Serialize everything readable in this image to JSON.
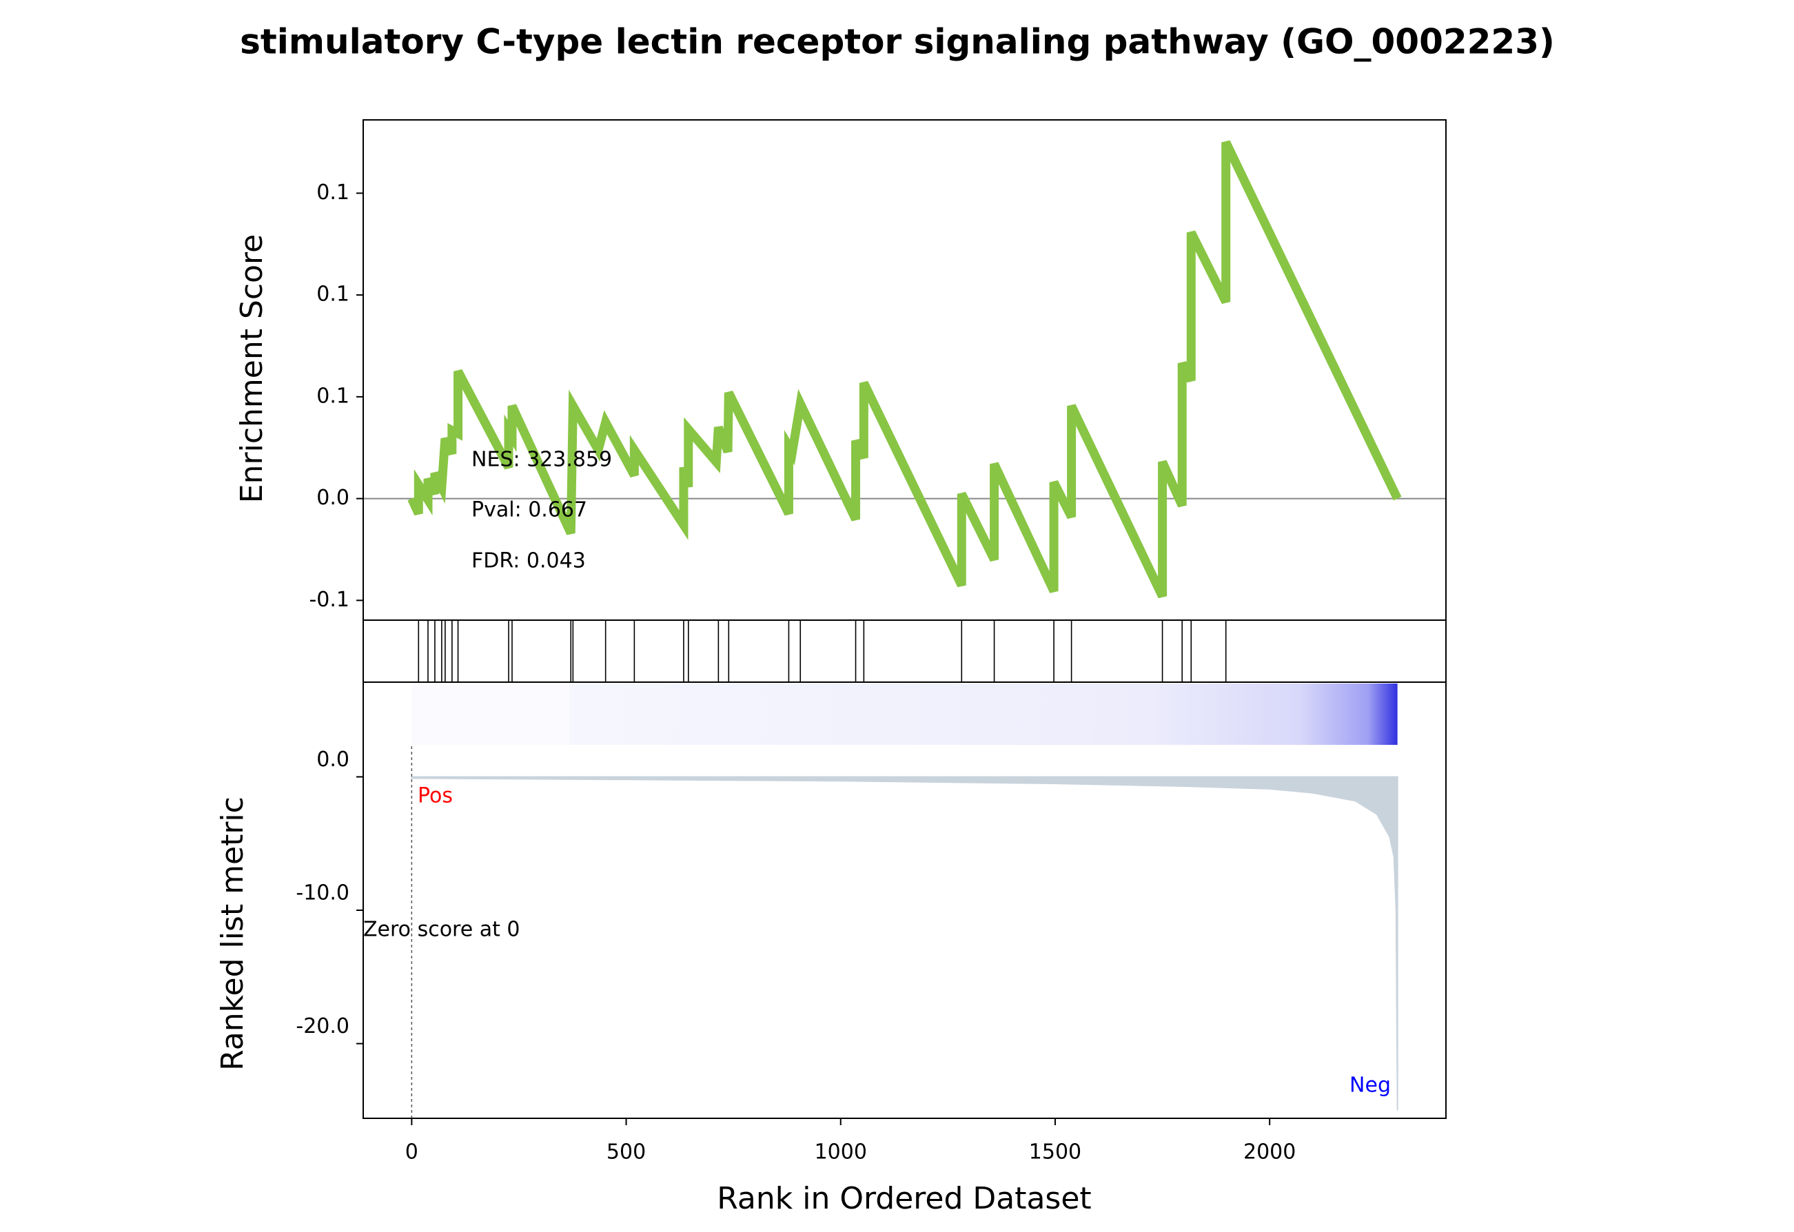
{
  "chart_data": [
    {
      "type": "line",
      "title": "stimulatory C-type lectin receptor signaling pathway (GO_0002223)",
      "ylabel": "Enrichment Score",
      "color": "#88c544",
      "x": [
        0,
        16,
        16,
        38,
        38,
        54,
        54,
        70,
        78,
        94,
        94,
        108,
        108,
        226,
        226,
        234,
        234,
        371,
        376,
        435,
        452,
        519,
        519,
        634,
        634,
        645,
        645,
        710,
        715,
        737,
        739,
        879,
        879,
        887,
        906,
        1035,
        1035,
        1054,
        1054,
        1282,
        1282,
        1358,
        1358,
        1497,
        1497,
        1538,
        1538,
        1750,
        1750,
        1796,
        1796,
        1817,
        1817,
        1898,
        1898,
        2298
      ],
      "values": [
        0,
        -0.0074,
        0.0068,
        -0.0006,
        0.0097,
        0.0023,
        0.0125,
        0.0057,
        0.0295,
        0.022,
        0.0335,
        0.032,
        0.0625,
        0.0153,
        0.0335,
        0.0307,
        0.0455,
        -0.017,
        0.0455,
        0.0239,
        0.0375,
        0.0114,
        0.0239,
        -0.013,
        0.0153,
        0.0057,
        0.034,
        0.018,
        0.035,
        0.023,
        0.052,
        -0.0074,
        0.0256,
        0.0227,
        0.0466,
        -0.0102,
        0.0284,
        0.02,
        0.0568,
        -0.0426,
        0.0023,
        -0.03,
        0.017,
        -0.0455,
        0.008,
        -0.009,
        0.0455,
        -0.048,
        0.018,
        -0.0034,
        0.0665,
        0.058,
        0.1307,
        0.0966,
        0.175,
        0
      ],
      "hits": [
        16,
        38,
        54,
        70,
        78,
        94,
        108,
        226,
        234,
        371,
        376,
        452,
        519,
        634,
        645,
        715,
        739,
        879,
        906,
        1035,
        1054,
        1282,
        1358,
        1497,
        1538,
        1750,
        1796,
        1817,
        1898
      ],
      "xlim": [
        -113,
        2411
      ],
      "ylim": [
        -0.0597,
        0.186
      ],
      "yticks": [
        {
          "value": 0.15,
          "label": "0.1"
        },
        {
          "value": 0.1,
          "label": "0.1"
        },
        {
          "value": 0.05,
          "label": "0.1"
        },
        {
          "value": 0,
          "label": "0.0"
        },
        {
          "value": -0.05,
          "label": "-0.1"
        }
      ],
      "annotations": [
        "NES: 323.859",
        "Pval: 0.667",
        "FDR: 0.043"
      ]
    },
    {
      "type": "area",
      "ylabel": "Ranked list metric",
      "xlabel": "Rank in Ordered Dataset",
      "color": "#c9d3dc",
      "x": [
        0,
        500,
        1000,
        1500,
        1800,
        2000,
        2100,
        2200,
        2250,
        2280,
        2290,
        2295,
        2298
      ],
      "values": [
        -0.1,
        -0.2,
        -0.3,
        -0.5,
        -0.7,
        -0.9,
        -1.2,
        -1.8,
        -2.8,
        -4.5,
        -6,
        -10,
        -25
      ],
      "xlim": [
        -113,
        2411
      ],
      "ylim": [
        -25.6,
        7.1
      ],
      "xticks": [
        0,
        500,
        1000,
        1500,
        2000
      ],
      "yticks": [
        {
          "value": 0,
          "label": "0.0"
        },
        {
          "value": -10,
          "label": "-10.0"
        },
        {
          "value": -20,
          "label": "-20.0"
        }
      ],
      "annotations": [
        "Pos",
        "Neg",
        "Zero score at 0"
      ]
    }
  ]
}
